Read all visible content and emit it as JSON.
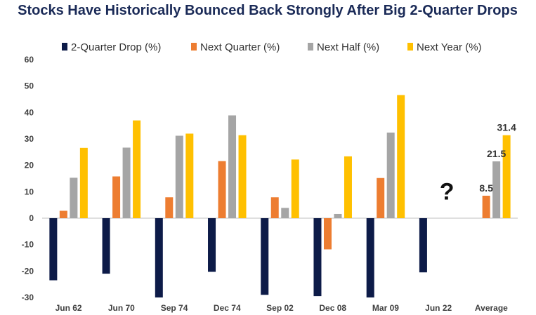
{
  "chart_data": {
    "type": "bar",
    "title": "Stocks Have Historically Bounced Back Strongly After Big 2-Quarter Drops",
    "categories": [
      "Jun 62",
      "Jun 70",
      "Sep 74",
      "Dec 74",
      "Sep 02",
      "Dec 08",
      "Mar 09",
      "Jun 22",
      "Average"
    ],
    "series": [
      {
        "name": "2-Quarter Drop (%)",
        "color": "#0d1b48",
        "values": [
          -23.5,
          -21,
          -30,
          -20.3,
          -29,
          -29.5,
          -30,
          -20.5,
          null
        ]
      },
      {
        "name": "Next Quarter (%)",
        "color": "#ed7d31",
        "values": [
          2.8,
          15.8,
          7.9,
          21.6,
          7.9,
          -11.8,
          15.2,
          null,
          8.5
        ]
      },
      {
        "name": "Next Half (%)",
        "color": "#a5a5a5",
        "values": [
          15.3,
          26.7,
          31.2,
          38.9,
          3.9,
          1.6,
          32.4,
          null,
          21.5
        ]
      },
      {
        "name": "Next Year (%)",
        "color": "#ffc000",
        "values": [
          26.6,
          37.0,
          32.0,
          31.4,
          22.2,
          23.4,
          46.6,
          null,
          31.4
        ]
      }
    ],
    "data_labels": [
      {
        "category": "Average",
        "series": "Next Quarter (%)",
        "text": "8.5"
      },
      {
        "category": "Average",
        "series": "Next Half (%)",
        "text": "21.5"
      },
      {
        "category": "Average",
        "series": "Next Year (%)",
        "text": "31.4"
      }
    ],
    "annotations": [
      {
        "category": "Jun 22",
        "text": "?"
      }
    ],
    "ylim": [
      -30,
      60
    ],
    "yticks": [
      -30,
      -20,
      -10,
      0,
      10,
      20,
      30,
      40,
      50,
      60
    ],
    "xlabel": "",
    "ylabel": "",
    "grid": false,
    "legend_position": "top"
  }
}
